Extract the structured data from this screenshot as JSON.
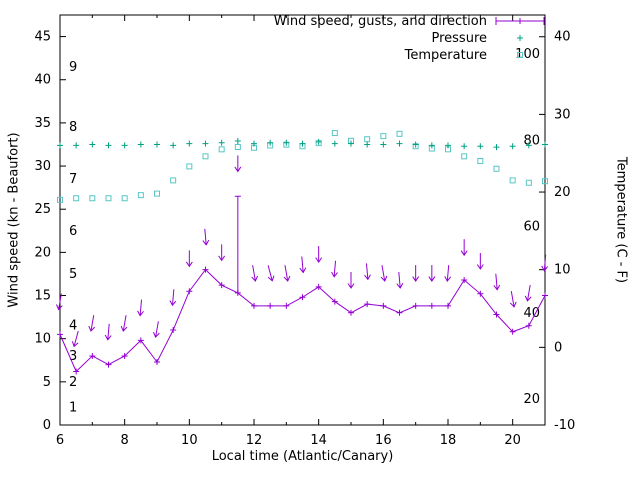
{
  "axes": {
    "xlabel": "Local time (Atlantic/Canary)",
    "ylabel_left": "Wind speed (kn - Beaufort)",
    "ylabel_right": "Temperature (C - F)"
  },
  "legend": [
    {
      "label": "Wind speed, gusts, and direction",
      "series": "wind"
    },
    {
      "label": "Pressure",
      "series": "pressure"
    },
    {
      "label": "Temperature",
      "series": "temperature"
    }
  ],
  "chart_data": {
    "type": "line",
    "title": "Wind speed, gusts, and direction / Pressure / Temperature",
    "x_range": [
      6,
      21
    ],
    "x_ticks": [
      6,
      8,
      10,
      12,
      14,
      16,
      18,
      20
    ],
    "x_minor_ticks": [
      7,
      9,
      11,
      13,
      15,
      17,
      19
    ],
    "y_left_range": [
      0,
      47.5
    ],
    "y_left_ticks": [
      0,
      5,
      10,
      15,
      20,
      25,
      30,
      35,
      40,
      45
    ],
    "y_right_range": [
      -10,
      42.8
    ],
    "y_right_ticks": [
      -10,
      0,
      10,
      20,
      30,
      40
    ],
    "beaufort_scale_labels": [
      {
        "label": "1",
        "kn": 2
      },
      {
        "label": "2",
        "kn": 5
      },
      {
        "label": "3",
        "kn": 8
      },
      {
        "label": "4",
        "kn": 11.5
      },
      {
        "label": "5",
        "kn": 17.5
      },
      {
        "label": "6",
        "kn": 22.5
      },
      {
        "label": "7",
        "kn": 28.5
      },
      {
        "label": "8",
        "kn": 34.5
      },
      {
        "label": "9",
        "kn": 41.5
      }
    ],
    "fahrenheit_scale_labels": [
      {
        "label": "20",
        "f": 20
      },
      {
        "label": "40",
        "f": 40
      },
      {
        "label": "60",
        "f": 60
      },
      {
        "label": "80",
        "f": 80
      },
      {
        "label": "100",
        "f": 100
      }
    ],
    "colors": {
      "wind": "#9400d3",
      "pressure": "#00a080",
      "temperature": "#58c6c6",
      "axis": "#000000"
    },
    "x": [
      6,
      6.5,
      7,
      7.5,
      8,
      8.5,
      9,
      9.5,
      10,
      10.5,
      11,
      11.5,
      12,
      12.5,
      13,
      13.5,
      14,
      14.5,
      15,
      15.5,
      16,
      16.5,
      17,
      17.5,
      18,
      18.5,
      19,
      19.5,
      20,
      20.5,
      21
    ],
    "series": [
      {
        "name": "Wind speed, gusts, and direction",
        "style": "errorlines-with-direction-vectors",
        "color_key": "wind",
        "speed_kn": [
          10.5,
          6.2,
          8,
          7,
          8,
          9.8,
          7.3,
          11,
          15.5,
          18,
          16.2,
          15.3,
          13.8,
          13.8,
          13.8,
          14.8,
          16,
          14.3,
          13,
          14,
          13.8,
          13,
          13.8,
          13.8,
          13.8,
          16.8,
          15.2,
          12.8,
          10.8,
          11.5,
          15
        ],
        "gust_kn": [
          10.9,
          6.6,
          8.4,
          7.4,
          8.4,
          10.2,
          7.7,
          11.4,
          15.9,
          18.4,
          16.6,
          26.5,
          14.2,
          14.2,
          14.2,
          15.2,
          16.4,
          14.7,
          13.4,
          14.4,
          14.2,
          13.4,
          14.2,
          14.2,
          14.2,
          17.2,
          15.6,
          13.2,
          11.2,
          11.9,
          15.4
        ],
        "direction_deg_from": [
          10,
          15,
          10,
          5,
          10,
          5,
          10,
          5,
          0,
          355,
          0,
          0,
          350,
          345,
          350,
          355,
          0,
          5,
          0,
          355,
          350,
          355,
          0,
          0,
          5,
          0,
          0,
          355,
          350,
          10,
          5
        ]
      },
      {
        "name": "Pressure",
        "style": "points-plus",
        "color_key": "pressure",
        "values_left_axis_kn": [
          32.4,
          32.4,
          32.5,
          32.4,
          32.4,
          32.5,
          32.5,
          32.4,
          32.6,
          32.6,
          32.7,
          32.9,
          32.6,
          32.7,
          32.7,
          32.6,
          32.8,
          32.6,
          32.6,
          32.5,
          32.5,
          32.6,
          32.5,
          32.4,
          32.4,
          32.3,
          32.3,
          32.2,
          32.3,
          32.4,
          32.5
        ]
      },
      {
        "name": "Temperature",
        "style": "points-open-square",
        "color_key": "temperature",
        "values_c": [
          19,
          19.2,
          19.2,
          19.2,
          19.2,
          19.6,
          19.8,
          21.5,
          23.3,
          24.6,
          25.5,
          25.8,
          25.7,
          26,
          26.1,
          25.9,
          26.3,
          27.6,
          26.6,
          26.8,
          27.2,
          27.5,
          25.9,
          25.6,
          25.5,
          24.6,
          24,
          23,
          21.5,
          21.2,
          21.4
        ]
      }
    ]
  }
}
